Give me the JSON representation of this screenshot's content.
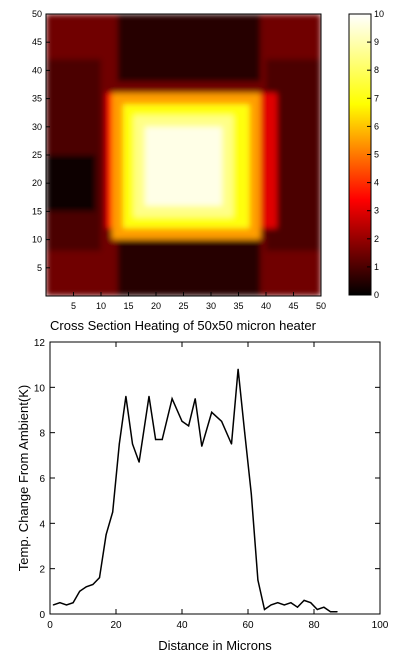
{
  "chart_data": [
    {
      "type": "heatmap",
      "xlabel": "Cross Section Heating of 50x50 micron heater",
      "xlim": [
        0,
        50
      ],
      "ylim": [
        0,
        50
      ],
      "x_ticks": [
        5,
        10,
        15,
        20,
        25,
        30,
        35,
        40,
        45,
        50
      ],
      "y_ticks": [
        5,
        10,
        15,
        20,
        25,
        30,
        35,
        40,
        45,
        50
      ],
      "colorbar": {
        "min": 0,
        "max": 10,
        "ticks": [
          0,
          1,
          2,
          3,
          4,
          5,
          6,
          7,
          8,
          9,
          10
        ]
      },
      "regions": [
        {
          "x0": 0,
          "x1": 50,
          "y0": 0,
          "y1": 50,
          "value": 1.5
        },
        {
          "x0": 0,
          "x1": 10,
          "y0": 8,
          "y1": 42,
          "value": 1.0
        },
        {
          "x0": 40,
          "x1": 50,
          "y0": 8,
          "y1": 42,
          "value": 1.0
        },
        {
          "x0": 13,
          "x1": 39,
          "y0": 0,
          "y1": 10,
          "value": 0.5
        },
        {
          "x0": 13,
          "x1": 39,
          "y0": 38,
          "y1": 50,
          "value": 0.5
        },
        {
          "x0": 0,
          "x1": 9,
          "y0": 15,
          "y1": 25,
          "value": 0.2
        },
        {
          "x0": 36,
          "x1": 42,
          "y0": 12,
          "y1": 36,
          "value": 3.0
        },
        {
          "x0": 11,
          "x1": 15,
          "y0": 12,
          "y1": 36,
          "value": 3.5
        },
        {
          "x0": 12,
          "x1": 39,
          "y0": 10,
          "y1": 36,
          "value": 5.5
        },
        {
          "x0": 14,
          "x1": 37,
          "y0": 12,
          "y1": 34,
          "value": 7.0
        },
        {
          "x0": 16,
          "x1": 34,
          "y0": 14,
          "y1": 32,
          "value": 8.5
        },
        {
          "x0": 18,
          "x1": 32,
          "y0": 16,
          "y1": 30,
          "value": 9.7
        }
      ]
    },
    {
      "type": "line",
      "xlabel": "Distance in Microns",
      "ylabel": "Temp. Change From Ambient(K)",
      "xlim": [
        0,
        100
      ],
      "ylim": [
        0,
        12
      ],
      "x_ticks": [
        0,
        20,
        40,
        60,
        80,
        100
      ],
      "y_ticks": [
        0,
        2,
        4,
        6,
        8,
        10,
        12
      ],
      "series": [
        {
          "x": [
            1,
            3,
            5,
            7,
            9,
            11,
            13,
            15,
            17,
            19,
            21,
            23,
            25,
            27,
            30,
            32,
            34,
            37,
            40,
            42,
            44,
            46,
            49,
            52,
            55,
            57,
            59,
            61,
            63,
            65,
            67,
            69,
            71,
            73,
            75,
            77,
            79,
            81,
            83,
            85,
            87
          ],
          "values": [
            0.4,
            0.5,
            0.4,
            0.5,
            1.0,
            1.2,
            1.3,
            1.6,
            3.5,
            4.5,
            7.5,
            9.6,
            7.5,
            6.7,
            9.6,
            7.7,
            7.7,
            9.5,
            8.5,
            8.3,
            9.5,
            7.4,
            8.9,
            8.5,
            7.5,
            10.8,
            8.0,
            5.3,
            1.5,
            0.2,
            0.4,
            0.5,
            0.4,
            0.5,
            0.3,
            0.6,
            0.5,
            0.2,
            0.3,
            0.1,
            0.1
          ]
        }
      ]
    }
  ]
}
